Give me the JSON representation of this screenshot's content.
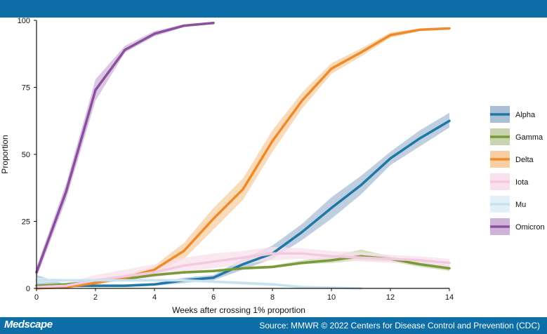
{
  "header": {},
  "footer": {
    "brand": "Medscape",
    "source": "Source: MMWR © 2022 Centers for Disease Control and Prevention (CDC)"
  },
  "chart_data": {
    "type": "line",
    "xlabel": "Weeks after crossing 1% proportion",
    "ylabel": "Proportion",
    "xlim": [
      0,
      14
    ],
    "ylim": [
      0,
      100
    ],
    "xticks": [
      0,
      2,
      4,
      6,
      8,
      10,
      12,
      14
    ],
    "yticks": [
      0,
      25,
      50,
      75,
      100
    ],
    "legend_position": "right",
    "series": [
      {
        "name": "Alpha",
        "color": "#1f77a6",
        "band_color": "#a9bfd6",
        "x": [
          0,
          1,
          2,
          3,
          4,
          5,
          6,
          7,
          8,
          9,
          10,
          11,
          12,
          13,
          14
        ],
        "y": [
          1,
          1,
          1,
          1,
          1.5,
          3,
          4,
          9,
          13,
          21,
          30,
          38.5,
          48.5,
          56,
          62.5
        ],
        "lower": [
          0.5,
          0.5,
          0.5,
          0.5,
          1,
          2,
          3,
          7,
          11,
          18,
          26,
          35,
          46,
          53,
          60
        ],
        "upper": [
          5,
          1.5,
          1.5,
          1.5,
          2,
          4,
          5,
          11,
          16,
          24,
          34,
          42,
          51,
          59,
          65.5
        ]
      },
      {
        "name": "Gamma",
        "color": "#7a9a3a",
        "band_color": "#c9d3ad",
        "x": [
          0,
          1,
          2,
          3,
          4,
          5,
          6,
          7,
          8,
          9,
          10,
          11,
          12,
          13,
          14
        ],
        "y": [
          1,
          1.5,
          2.5,
          3.5,
          5,
          6,
          6.5,
          7.5,
          8,
          9.5,
          10.5,
          12,
          11,
          9,
          7.5
        ],
        "lower": [
          0.5,
          1,
          2,
          3,
          4.5,
          5.5,
          6,
          7,
          7.5,
          9,
          9.5,
          10.5,
          10,
          8,
          6.5
        ],
        "upper": [
          1.5,
          2,
          3,
          4,
          5.5,
          6.5,
          7,
          8,
          8.5,
          10.5,
          12,
          14.5,
          12,
          10,
          8.5
        ]
      },
      {
        "name": "Delta",
        "color": "#ee8a2a",
        "band_color": "#f7cfa3",
        "x": [
          0,
          1,
          2,
          3,
          4,
          5,
          6,
          7,
          8,
          9,
          10,
          11,
          12,
          13,
          14
        ],
        "y": [
          0,
          0.5,
          2,
          4,
          7,
          14,
          26,
          37,
          55,
          70,
          82,
          88,
          94.5,
          96.5,
          97
        ],
        "lower": [
          0,
          0.3,
          1.5,
          3,
          5.5,
          11,
          22,
          33,
          51,
          67,
          80,
          86.5,
          93.5,
          96,
          96.5
        ],
        "upper": [
          0.5,
          1,
          2.5,
          5,
          8.5,
          17,
          30,
          41,
          59,
          73,
          84,
          89.5,
          95.5,
          97,
          97.5
        ]
      },
      {
        "name": "Iota",
        "color": "#f2c9de",
        "band_color": "#f8e0ec",
        "x": [
          0,
          1,
          2,
          3,
          4,
          5,
          6,
          7,
          8,
          9,
          10,
          11,
          12,
          13,
          14
        ],
        "y": [
          0.5,
          1,
          3,
          4.5,
          6,
          8.5,
          10,
          11.5,
          13,
          13,
          12,
          11.5,
          11,
          10.5,
          9.5
        ],
        "lower": [
          0,
          0.5,
          1.5,
          3,
          4,
          6,
          7.5,
          9,
          10.5,
          11,
          10.5,
          10,
          9.5,
          9,
          8
        ],
        "upper": [
          1,
          2,
          5,
          7,
          9,
          11.5,
          13,
          14,
          15.5,
          15,
          14,
          13.5,
          12.5,
          12,
          11
        ]
      },
      {
        "name": "Mu",
        "color": "#c8e2f0",
        "band_color": "#e3f0f7",
        "x": [
          0,
          1,
          2,
          3,
          4,
          5,
          6,
          7,
          8,
          9,
          10,
          11
        ],
        "y": [
          3,
          3,
          3,
          3,
          3,
          3,
          2.5,
          2,
          1.5,
          0.5,
          0.3,
          0
        ],
        "lower": [
          2,
          2.5,
          2.5,
          2.5,
          2.5,
          2.5,
          2,
          1.5,
          1,
          0.2,
          0,
          0
        ],
        "upper": [
          4,
          3.5,
          3.5,
          3.5,
          3.5,
          3.5,
          3,
          2.5,
          2,
          1,
          0.6,
          0.3
        ]
      },
      {
        "name": "Omicron",
        "color": "#8a4f9e",
        "band_color": "#cfb3d9",
        "x": [
          0,
          1,
          2,
          3,
          4,
          5,
          6
        ],
        "y": [
          6,
          36,
          74,
          89,
          95,
          98,
          99
        ],
        "lower": [
          4,
          33,
          70,
          88,
          94,
          97.5,
          99
        ],
        "upper": [
          8,
          39,
          78,
          90.5,
          96,
          98.5,
          99.5
        ]
      }
    ]
  }
}
